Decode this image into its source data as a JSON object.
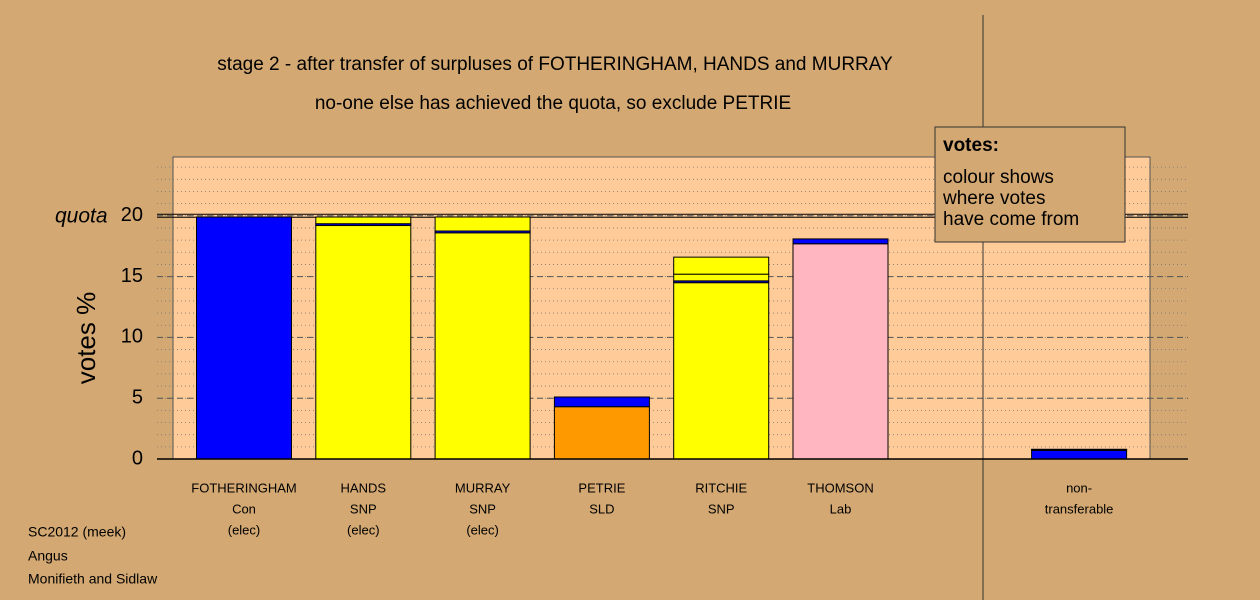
{
  "chart_data": {
    "type": "stacked-bar",
    "title": "stage 2 - after transfer of surpluses of FOTHERINGHAM, HANDS and MURRAY",
    "subtitle": "no-one else has achieved the quota, so exclude PETRIE",
    "y_label": "votes %",
    "quota": 20,
    "quota_label": "quota",
    "categories": [
      [
        "FOTHERINGHAM",
        "Con",
        "(elec)"
      ],
      [
        "HANDS",
        "SNP",
        "(elec)"
      ],
      [
        "MURRAY",
        "SNP",
        "(elec)"
      ],
      [
        "PETRIE",
        "SLD"
      ],
      [
        "RITCHIE",
        "SNP"
      ],
      [
        "THOMSON",
        "Lab"
      ],
      null,
      [
        "non-",
        "transferable"
      ]
    ],
    "series": [
      {
        "colors": [
          "#0000ff",
          "#ffff00",
          "#ffff00",
          "#ff9900",
          "#ffff00",
          "#ffb6c1",
          null,
          "#0000ff"
        ],
        "values": [
          19.9,
          19.2,
          18.6,
          4.3,
          14.5,
          17.7,
          null,
          0
        ]
      },
      {
        "color": "#0000ff",
        "values": [
          0,
          0.15,
          0.15,
          0.8,
          0.15,
          0.4,
          null,
          0.7
        ]
      },
      {
        "color": "#ffff00",
        "values": [
          0,
          0.55,
          0,
          0,
          0.55,
          0,
          null,
          0.05
        ]
      },
      {
        "color": "#ffff00",
        "values": [
          0,
          0,
          1.15,
          0,
          1.4,
          0,
          null,
          0.05
        ]
      }
    ],
    "ylim": [
      0,
      25
    ],
    "yticks": [
      0,
      5,
      10,
      15,
      20
    ],
    "minor_grid_step": 1,
    "legend": {
      "title": "votes:",
      "lines": [
        "colour shows",
        "where votes",
        "have come from"
      ]
    },
    "footer": [
      "SC2012 (meek)",
      "Angus",
      "Monifieth and Sidlaw"
    ]
  }
}
